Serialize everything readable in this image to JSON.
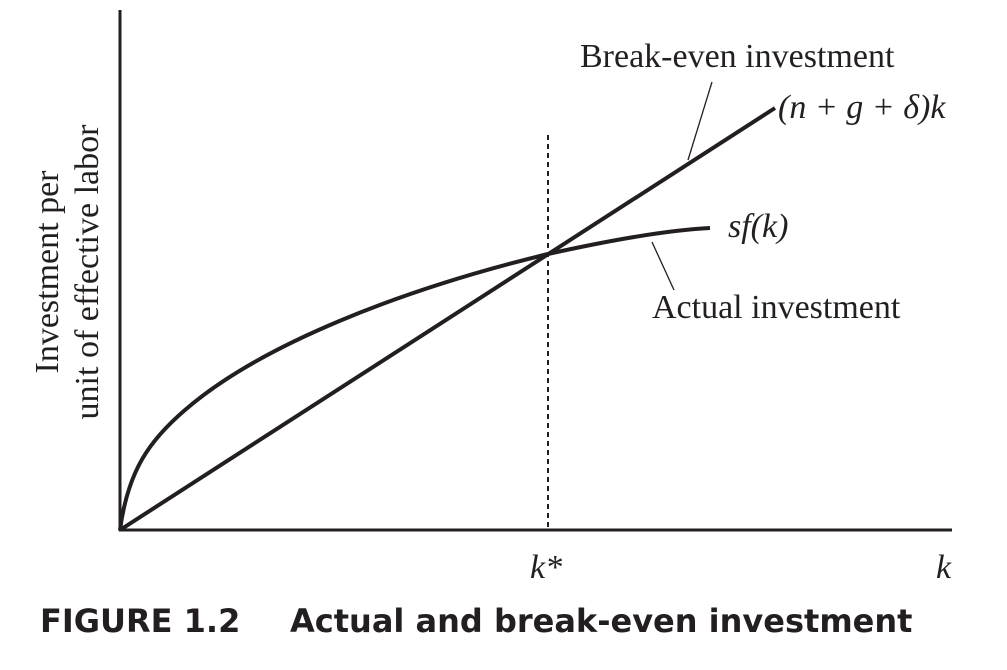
{
  "figure": {
    "y_axis_label": [
      "Investment per",
      "unit of effective labor"
    ],
    "x_labels": {
      "k_star": "k*",
      "k": "k"
    },
    "lines": {
      "break_even": {
        "name": "Break-even investment",
        "formula": "(n + g + δ)k"
      },
      "actual": {
        "name": "Actual investment",
        "formula": "sf(k)"
      }
    },
    "caption": {
      "number": "FIGURE 1.2",
      "title": "Actual and break-even investment"
    }
  }
}
